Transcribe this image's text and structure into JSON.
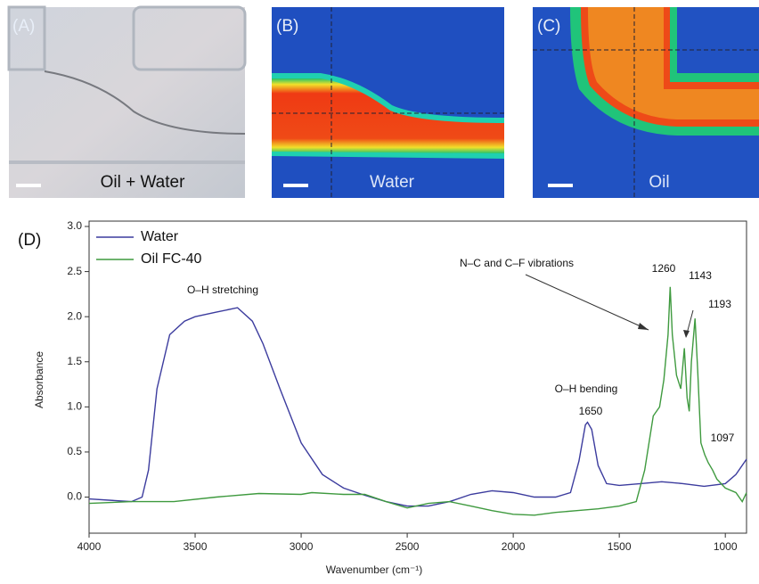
{
  "panels": [
    {
      "label": "(A)",
      "caption": "Oil + Water"
    },
    {
      "label": "(B)",
      "caption": "Water"
    },
    {
      "label": "(C)",
      "caption": "Oil"
    }
  ],
  "chart_data": {
    "type": "line",
    "panel_label": "(D)",
    "x_label": "Wavenumber (cm⁻¹)",
    "y_label": "Absorbance",
    "xlim": [
      4000,
      900
    ],
    "ylim": [
      -0.4,
      3.0
    ],
    "xticks": [
      4000,
      3500,
      3000,
      2500,
      2000,
      1500,
      1000
    ],
    "yticks": [
      {
        "value": 3,
        "label": "3.0"
      },
      2.5,
      {
        "value": 2,
        "label": "2.0"
      },
      1.5,
      {
        "value": 1,
        "label": "1.0"
      },
      0.5,
      {
        "value": 0,
        "label": "0.0"
      }
    ],
    "series": [
      {
        "name": "Water",
        "color": "#3c3c9e",
        "x": [
          4000,
          3800,
          3750,
          3720,
          3680,
          3620,
          3550,
          3500,
          3400,
          3300,
          3230,
          3180,
          3100,
          3000,
          2900,
          2800,
          2700,
          2600,
          2500,
          2400,
          2300,
          2200,
          2100,
          2000,
          1900,
          1800,
          1730,
          1690,
          1660,
          1650,
          1630,
          1600,
          1560,
          1500,
          1400,
          1300,
          1200,
          1100,
          1000,
          950,
          900
        ],
        "values": [
          -0.02,
          -0.05,
          0,
          0.3,
          1.2,
          1.8,
          1.95,
          2.0,
          2.05,
          2.1,
          1.95,
          1.7,
          1.2,
          0.6,
          0.25,
          0.1,
          0.02,
          -0.05,
          -0.1,
          -0.1,
          -0.05,
          0.03,
          0.07,
          0.05,
          0,
          0,
          0.05,
          0.4,
          0.8,
          0.83,
          0.75,
          0.35,
          0.15,
          0.13,
          0.15,
          0.17,
          0.15,
          0.12,
          0.15,
          0.25,
          0.42
        ]
      },
      {
        "name": "Oil FC-40",
        "color": "#3f9a3f",
        "x": [
          4000,
          3800,
          3600,
          3400,
          3200,
          3000,
          2950,
          2800,
          2700,
          2600,
          2500,
          2400,
          2300,
          2200,
          2100,
          2000,
          1900,
          1800,
          1700,
          1600,
          1500,
          1420,
          1380,
          1340,
          1310,
          1290,
          1270,
          1260,
          1250,
          1230,
          1210,
          1193,
          1180,
          1170,
          1160,
          1143,
          1130,
          1115,
          1097,
          1080,
          1060,
          1040,
          1000,
          950,
          920,
          900
        ],
        "values": [
          -0.07,
          -0.05,
          -0.05,
          0,
          0.04,
          0.03,
          0.05,
          0.03,
          0.03,
          -0.05,
          -0.12,
          -0.07,
          -0.05,
          -0.1,
          -0.15,
          -0.19,
          -0.2,
          -0.17,
          -0.15,
          -0.13,
          -0.1,
          -0.05,
          0.3,
          0.9,
          1.0,
          1.3,
          1.8,
          2.33,
          1.8,
          1.35,
          1.2,
          1.65,
          1.1,
          0.95,
          1.5,
          1.98,
          1.4,
          0.6,
          0.47,
          0.38,
          0.3,
          0.2,
          0.1,
          0.05,
          -0.05,
          0.05
        ]
      }
    ],
    "annotations": [
      "O–H stretching",
      "O–H bending",
      "1650",
      "N–C and C–F vibrations",
      "1260",
      "1143",
      "1193",
      "1097"
    ]
  }
}
